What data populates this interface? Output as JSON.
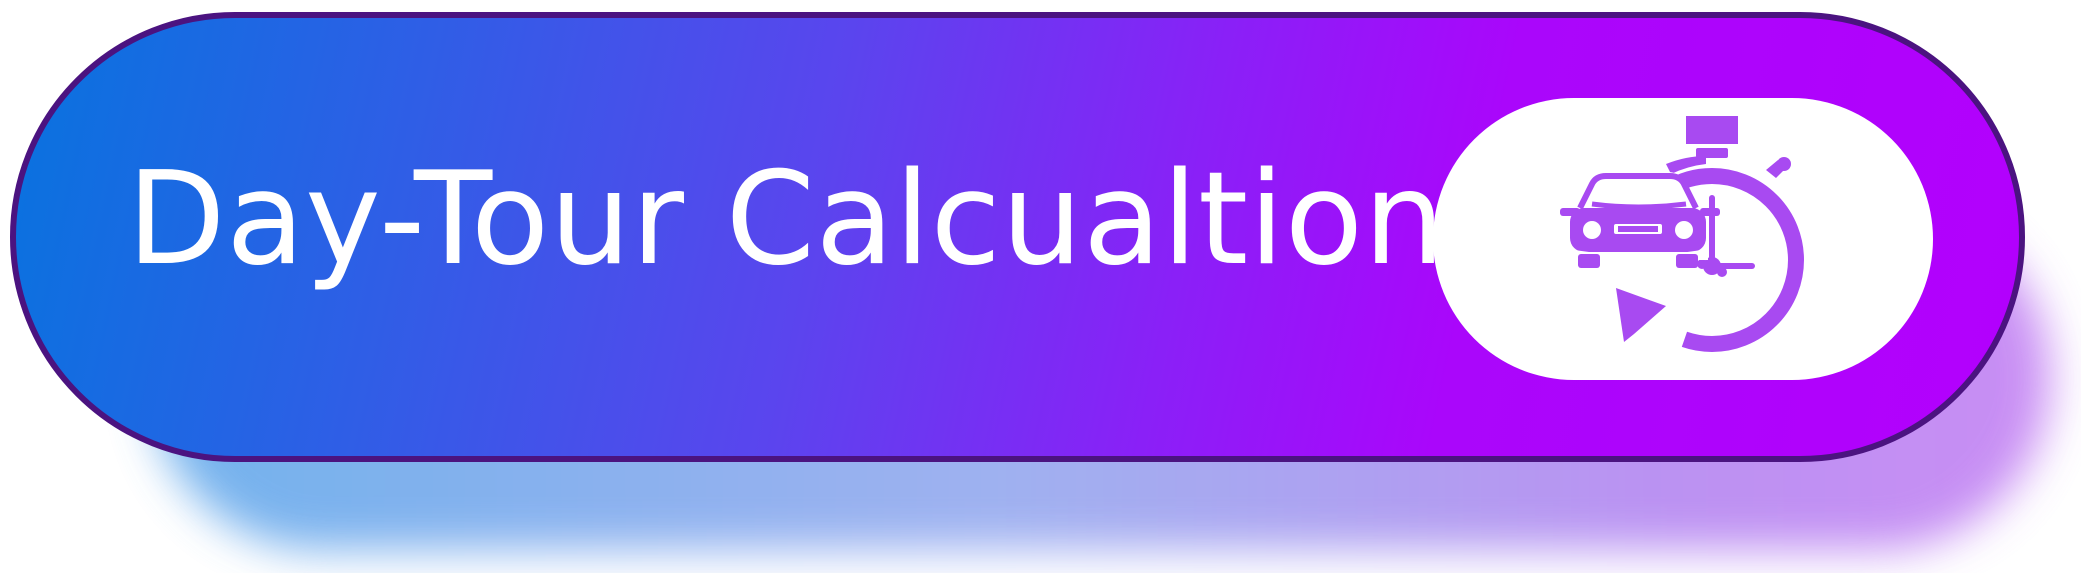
{
  "button": {
    "label": "Day-Tour Calcualtion",
    "icon": "car-stopwatch-icon"
  },
  "colors": {
    "gradient_start": "#0873df",
    "gradient_end": "#b300fd",
    "border": "#4b1380",
    "icon": "#a84af1",
    "text": "#ffffff"
  }
}
